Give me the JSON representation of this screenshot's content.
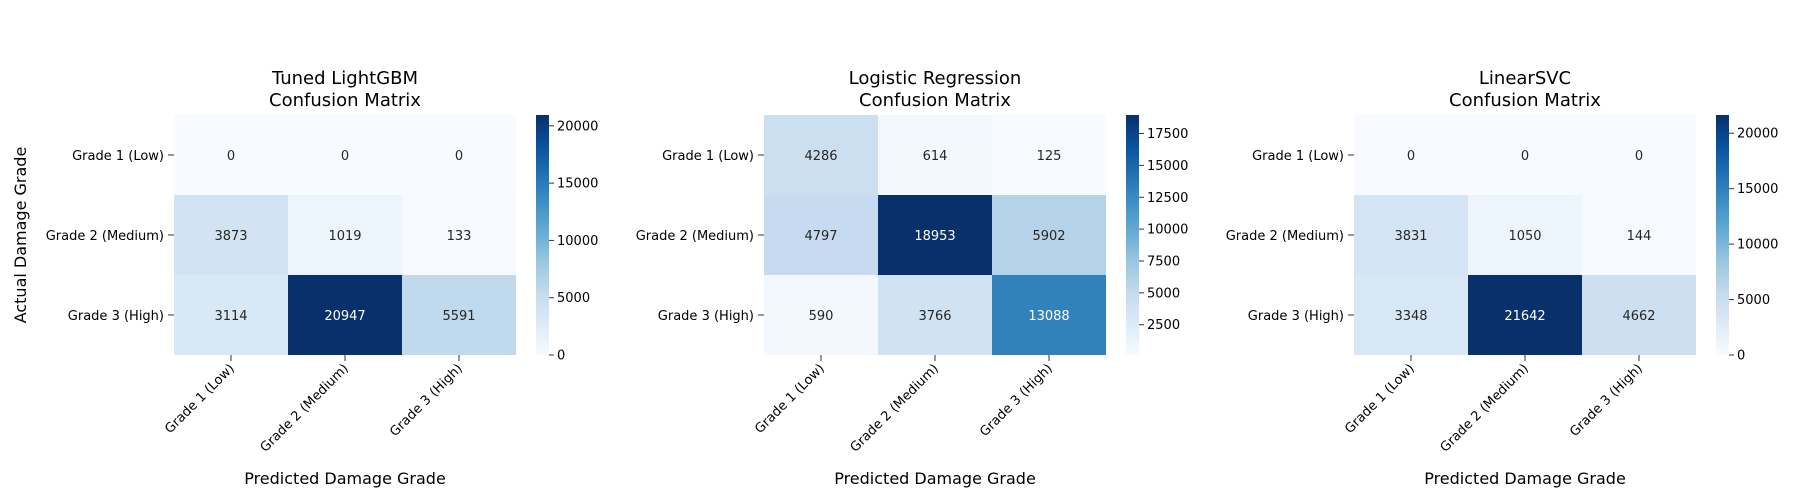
{
  "chart_data": [
    {
      "type": "heatmap",
      "title": "Tuned LightGBM\nConfusion Matrix",
      "xlabel": "Predicted Damage Grade",
      "ylabel": "Actual Damage Grade",
      "x_categories": [
        "Grade 1 (Low)",
        "Grade 2 (Medium)",
        "Grade 3 (High)"
      ],
      "y_categories": [
        "Grade 1 (Low)",
        "Grade 2 (Medium)",
        "Grade 3 (High)"
      ],
      "values": [
        [
          0,
          0,
          0
        ],
        [
          3873,
          1019,
          133
        ],
        [
          3114,
          20947,
          5591
        ]
      ],
      "colorbar": {
        "min": 0,
        "max": 20947,
        "ticks": [
          0,
          5000,
          10000,
          15000,
          20000
        ]
      },
      "colormap": "Blues"
    },
    {
      "type": "heatmap",
      "title": "Logistic Regression\nConfusion Matrix",
      "xlabel": "Predicted Damage Grade",
      "ylabel": "",
      "x_categories": [
        "Grade 1 (Low)",
        "Grade 2 (Medium)",
        "Grade 3 (High)"
      ],
      "y_categories": [
        "Grade 1 (Low)",
        "Grade 2 (Medium)",
        "Grade 3 (High)"
      ],
      "values": [
        [
          4286,
          614,
          125
        ],
        [
          4797,
          18953,
          5902
        ],
        [
          590,
          3766,
          13088
        ]
      ],
      "colorbar": {
        "min": 125,
        "max": 18953,
        "ticks": [
          2500,
          5000,
          7500,
          10000,
          12500,
          15000,
          17500
        ]
      },
      "colormap": "Blues"
    },
    {
      "type": "heatmap",
      "title": "LinearSVC\nConfusion Matrix",
      "xlabel": "Predicted Damage Grade",
      "ylabel": "",
      "x_categories": [
        "Grade 1 (Low)",
        "Grade 2 (Medium)",
        "Grade 3 (High)"
      ],
      "y_categories": [
        "Grade 1 (Low)",
        "Grade 2 (Medium)",
        "Grade 3 (High)"
      ],
      "values": [
        [
          0,
          0,
          0
        ],
        [
          3831,
          1050,
          144
        ],
        [
          3348,
          21642,
          4662
        ]
      ],
      "colorbar": {
        "min": 0,
        "max": 21642,
        "ticks": [
          0,
          5000,
          10000,
          15000,
          20000
        ]
      },
      "colormap": "Blues"
    }
  ]
}
